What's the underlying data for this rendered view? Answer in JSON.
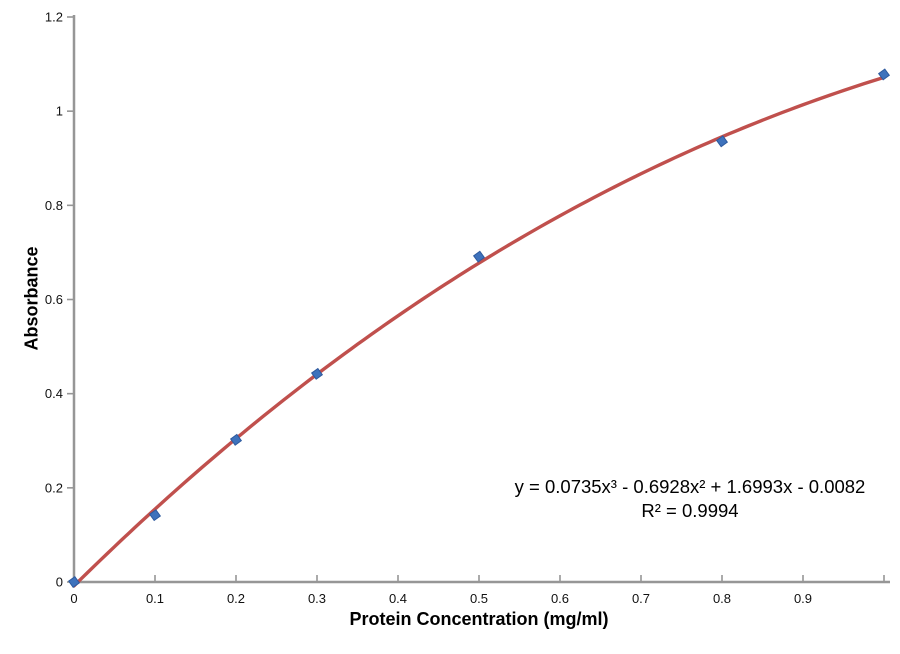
{
  "chart_data": {
    "type": "scatter",
    "title": "",
    "xlabel": "Protein Concentration (mg/ml)",
    "ylabel": "Absorbance",
    "xlim": [
      0,
      1.0
    ],
    "ylim": [
      0,
      1.2
    ],
    "grid": false,
    "legend": "none",
    "x_ticks": [
      0,
      0.1,
      0.2,
      0.3,
      0.4,
      0.5,
      0.6,
      0.7,
      0.8,
      0.9,
      1.0
    ],
    "x_tick_labels": [
      "0",
      "0.1",
      "0.2",
      "0.3",
      "0.4",
      "0.5",
      "0.6",
      "0.7",
      "0.8",
      "0.9",
      ""
    ],
    "y_ticks": [
      0,
      0.2,
      0.4,
      0.6,
      0.8,
      1.0,
      1.2
    ],
    "y_tick_labels": [
      "0",
      "0.2",
      "0.4",
      "0.6",
      "0.8",
      "1",
      "1.2"
    ],
    "points": {
      "x": [
        0,
        0.1,
        0.2,
        0.3,
        0.5,
        0.8,
        1.0
      ],
      "y": [
        0,
        0.142,
        0.302,
        0.442,
        0.691,
        0.936,
        1.078
      ]
    },
    "marker": {
      "shape": "diamond",
      "fill_color": "#3E72BC",
      "stroke_color": "#2E5A9E"
    },
    "trendline": {
      "type": "polynomial",
      "degree": 3,
      "coefficients": [
        0.0735,
        -0.6928,
        1.6993,
        -0.0082
      ],
      "color": "#C0504D",
      "equation": "y = 0.0735x³ - 0.6928x² + 1.6993x - 0.0082",
      "r_squared": "R² = 0.9994"
    },
    "axis_color": "#969696"
  }
}
